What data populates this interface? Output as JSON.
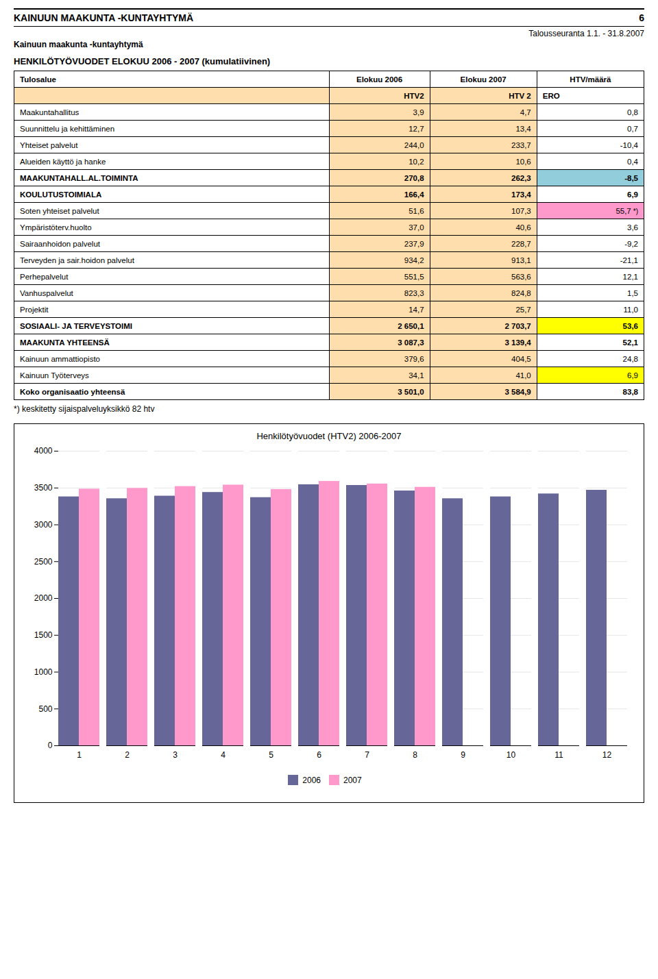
{
  "header": {
    "title_left": "KAINUUN MAAKUNTA -KUNTAYHTYMÄ",
    "title_right": "6",
    "subtitle": "Talousseuranta 1.1. - 31.8.2007",
    "section_title": "Kainuun maakunta -kuntayhtymä"
  },
  "table": {
    "type": "table",
    "title": "HENKILÖTYÖVUODET ELOKUU 2006 - 2007 (kumulatiivinen)",
    "columns": [
      "Tulosalue",
      "Elokuu 2006",
      "Elokuu 2007",
      "HTV/määrä"
    ],
    "subcolumns": [
      null,
      "HTV2",
      "HTV 2",
      "ERO"
    ],
    "color": "#FFDEAD",
    "rows": [
      {
        "name": "Maakuntahallitus",
        "v2006": "3,9",
        "v2007": "4,7",
        "ero": "0,8",
        "bold": false,
        "color": null
      },
      {
        "name": "Suunnittelu ja kehittäminen",
        "v2006": "12,7",
        "v2007": "13,4",
        "ero": "0,7",
        "bold": false,
        "color": null
      },
      {
        "name": "Yhteiset palvelut",
        "v2006": "244,0",
        "v2007": "233,7",
        "ero": "-10,4",
        "bold": false,
        "color": null
      },
      {
        "name": "Alueiden käyttö ja hanke",
        "v2006": "10,2",
        "v2007": "10,6",
        "ero": "0,4",
        "bold": false,
        "color": null
      },
      {
        "name": "MAAKUNTAHALL.AL.TOIMINTA",
        "v2006": "270,8",
        "v2007": "262,3",
        "ero": "-8,5",
        "bold": true,
        "color": "#92CDDC"
      },
      {
        "name": "KOULUTUSTOIMIALA",
        "v2006": "166,4",
        "v2007": "173,4",
        "ero": "6,9",
        "bold": true,
        "color": null
      },
      {
        "name": "Soten yhteiset palvelut",
        "v2006": "51,6",
        "v2007": "107,3",
        "ero": "55,7",
        "bold": false,
        "color": "#FF99CC",
        "note": "*)"
      },
      {
        "name": "Ympäristöterv.huolto",
        "v2006": "37,0",
        "v2007": "40,6",
        "ero": "3,6",
        "bold": false,
        "color": null
      },
      {
        "name": "Sairaanhoidon palvelut",
        "v2006": "237,9",
        "v2007": "228,7",
        "ero": "-9,2",
        "bold": false,
        "color": null
      },
      {
        "name": "Terveyden ja sair.hoidon palvelut",
        "v2006": "934,2",
        "v2007": "913,1",
        "ero": "-21,1",
        "bold": false,
        "color": null
      },
      {
        "name": "Perhepalvelut",
        "v2006": "551,5",
        "v2007": "563,6",
        "ero": "12,1",
        "bold": false,
        "color": null
      },
      {
        "name": "Vanhuspalvelut",
        "v2006": "823,3",
        "v2007": "824,8",
        "ero": "1,5",
        "bold": false,
        "color": null
      },
      {
        "name": "Projektit",
        "v2006": "14,7",
        "v2007": "25,7",
        "ero": "11,0",
        "bold": false,
        "color": null
      },
      {
        "name": "SOSIAALI- JA TERVEYSTOIMI",
        "v2006": "2 650,1",
        "v2007": "2 703,7",
        "ero": "53,6",
        "bold": true,
        "color": "#FFFF00"
      },
      {
        "name": "MAAKUNTA YHTEENSÄ",
        "v2006": "3 087,3",
        "v2007": "3 139,4",
        "ero": "52,1",
        "bold": true,
        "color": null
      },
      {
        "name": "Kainuun ammattiopisto",
        "v2006": "379,6",
        "v2007": "404,5",
        "ero": "24,8",
        "bold": false,
        "color": null
      },
      {
        "name": "Kainuun Työterveys",
        "v2006": "34,1",
        "v2007": "41,0",
        "ero": "6,9",
        "bold": false,
        "color": "#FFFF00"
      },
      {
        "name": "Koko organisaatio yhteensä",
        "v2006": "3 501,0",
        "v2007": "3 584,9",
        "ero": "83,8",
        "bold": true,
        "color": null
      }
    ],
    "footnote": "*) keskitetty sijaispalveluyksikkö 82 htv"
  },
  "chart_data": {
    "type": "bar",
    "title": "Henkilötyövuodet (HTV2) 2006-2007",
    "categories": [
      "1",
      "2",
      "3",
      "4",
      "5",
      "6",
      "7",
      "8",
      "9",
      "10",
      "11",
      "12"
    ],
    "series": [
      {
        "name": "2006",
        "color": "#666699",
        "values": [
          3380,
          3355,
          3390,
          3440,
          3370,
          3545,
          3535,
          3460,
          3355,
          3380,
          3420,
          3470
        ]
      },
      {
        "name": "2007",
        "color": "#FF99CC",
        "values": [
          3485,
          3495,
          3520,
          3540,
          3480,
          3590,
          3555,
          3510,
          0,
          0,
          0,
          0
        ]
      }
    ],
    "ylim": [
      0,
      4000
    ],
    "yticks": [
      0,
      500,
      1000,
      1500,
      2000,
      2500,
      3000,
      3500,
      4000
    ],
    "grid": true,
    "legend": "bottom"
  }
}
